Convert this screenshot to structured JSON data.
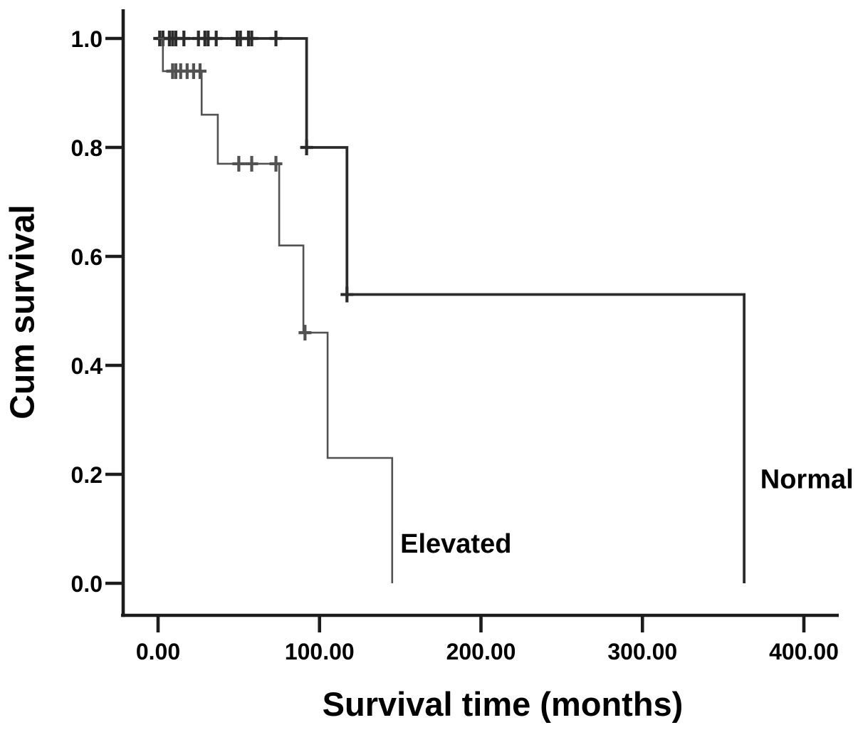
{
  "figure": {
    "background": "#ffffff",
    "axis_color": "#1c1c1c",
    "text_color": "#000000"
  },
  "chart_data": {
    "type": "line",
    "subtype": "kaplan-meier-step",
    "title": "",
    "xlabel": "Survival time (months)",
    "ylabel": "Cum survival",
    "grid": false,
    "legend_position": "inline-annotations",
    "xlim": [
      -22,
      421
    ],
    "ylim": [
      -0.06,
      1.05
    ],
    "xticks": [
      {
        "value": 0,
        "label": "0.00"
      },
      {
        "value": 100,
        "label": "100.00"
      },
      {
        "value": 200,
        "label": "200.00"
      },
      {
        "value": 300,
        "label": "300.00"
      },
      {
        "value": 400,
        "label": "400.00"
      }
    ],
    "yticks": [
      {
        "value": 0.0,
        "label": "0.0"
      },
      {
        "value": 0.2,
        "label": "0.2"
      },
      {
        "value": 0.4,
        "label": "0.4"
      },
      {
        "value": 0.6,
        "label": "0.6"
      },
      {
        "value": 0.8,
        "label": "0.8"
      },
      {
        "value": 1.0,
        "label": "1.0"
      }
    ],
    "series": [
      {
        "name": "Normal",
        "color": "#2b2b2b",
        "stroke_width": 3.8,
        "steps": [
          [
            0,
            1.0
          ],
          [
            92,
            0.8
          ],
          [
            117,
            0.53
          ],
          [
            363,
            0.0
          ]
        ],
        "censors": [
          [
            1,
            1.0
          ],
          [
            3,
            1.0
          ],
          [
            7,
            1.0
          ],
          [
            9,
            1.0
          ],
          [
            11,
            1.0
          ],
          [
            16,
            1.0
          ],
          [
            25,
            1.0
          ],
          [
            29,
            1.0
          ],
          [
            31,
            1.0
          ],
          [
            36,
            1.0
          ],
          [
            49,
            1.0
          ],
          [
            51,
            1.0
          ],
          [
            56,
            1.0
          ],
          [
            58,
            1.0
          ],
          [
            73,
            1.0
          ],
          [
            92,
            0.8
          ],
          [
            117,
            0.53
          ]
        ],
        "label": {
          "text": "Normal",
          "t": 373,
          "s": 0.19
        }
      },
      {
        "name": "Elevated",
        "color": "#525252",
        "stroke_width": 2.6,
        "steps": [
          [
            0,
            1.0
          ],
          [
            3,
            0.94
          ],
          [
            27,
            0.86
          ],
          [
            37,
            0.77
          ],
          [
            75,
            0.62
          ],
          [
            90,
            0.46
          ],
          [
            105,
            0.23
          ],
          [
            145,
            0.0
          ]
        ],
        "censors": [
          [
            9,
            0.94
          ],
          [
            11,
            0.94
          ],
          [
            14,
            0.94
          ],
          [
            18,
            0.94
          ],
          [
            22,
            0.94
          ],
          [
            26,
            0.94
          ],
          [
            50,
            0.77
          ],
          [
            58,
            0.77
          ],
          [
            73,
            0.77
          ],
          [
            91,
            0.46
          ]
        ],
        "label": {
          "text": "Elevated",
          "t": 150,
          "s": 0.072
        }
      }
    ]
  }
}
